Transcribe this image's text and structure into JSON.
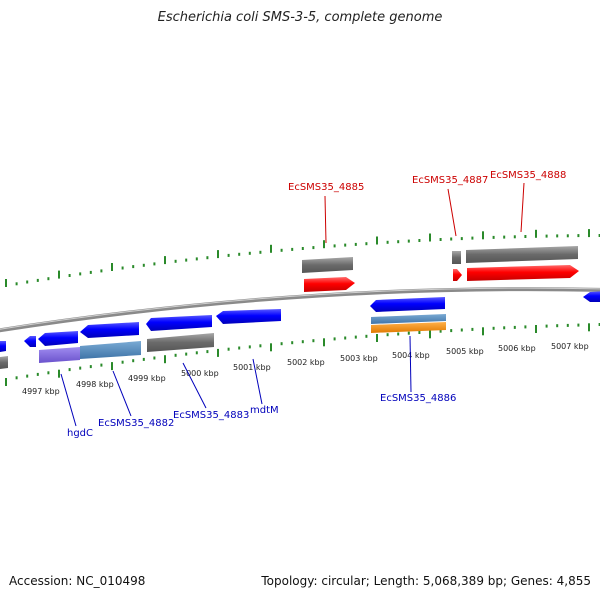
{
  "title": "Escherichia coli SMS-3-5, complete genome",
  "footer": {
    "accession": "Accession: NC_010498",
    "topology": "Topology: circular; Length: 5,068,389 bp; Genes: 4,855"
  },
  "colors": {
    "forward": "#ff0000",
    "reverse": "#0000ff",
    "gray": "#707070",
    "backbone": "#8a8a8a",
    "tick": "#2a8a2a",
    "fwd_label": "#cc0000",
    "rev_label": "#0000bb"
  },
  "scale": {
    "ticks": [
      "4997 kbp",
      "4998 kbp",
      "4999 kbp",
      "5000 kbp",
      "5001 kbp",
      "5002 kbp",
      "5003 kbp",
      "5004 kbp",
      "5005 kbp",
      "5006 kbp",
      "5007 kbp"
    ]
  },
  "genes": {
    "forward": [
      "EcSMS35_4885",
      "EcSMS35_4887",
      "EcSMS35_4888"
    ],
    "reverse": [
      "hgdC",
      "EcSMS35_4882",
      "EcSMS35_4883",
      "mdtM",
      "EcSMS35_4886"
    ]
  }
}
